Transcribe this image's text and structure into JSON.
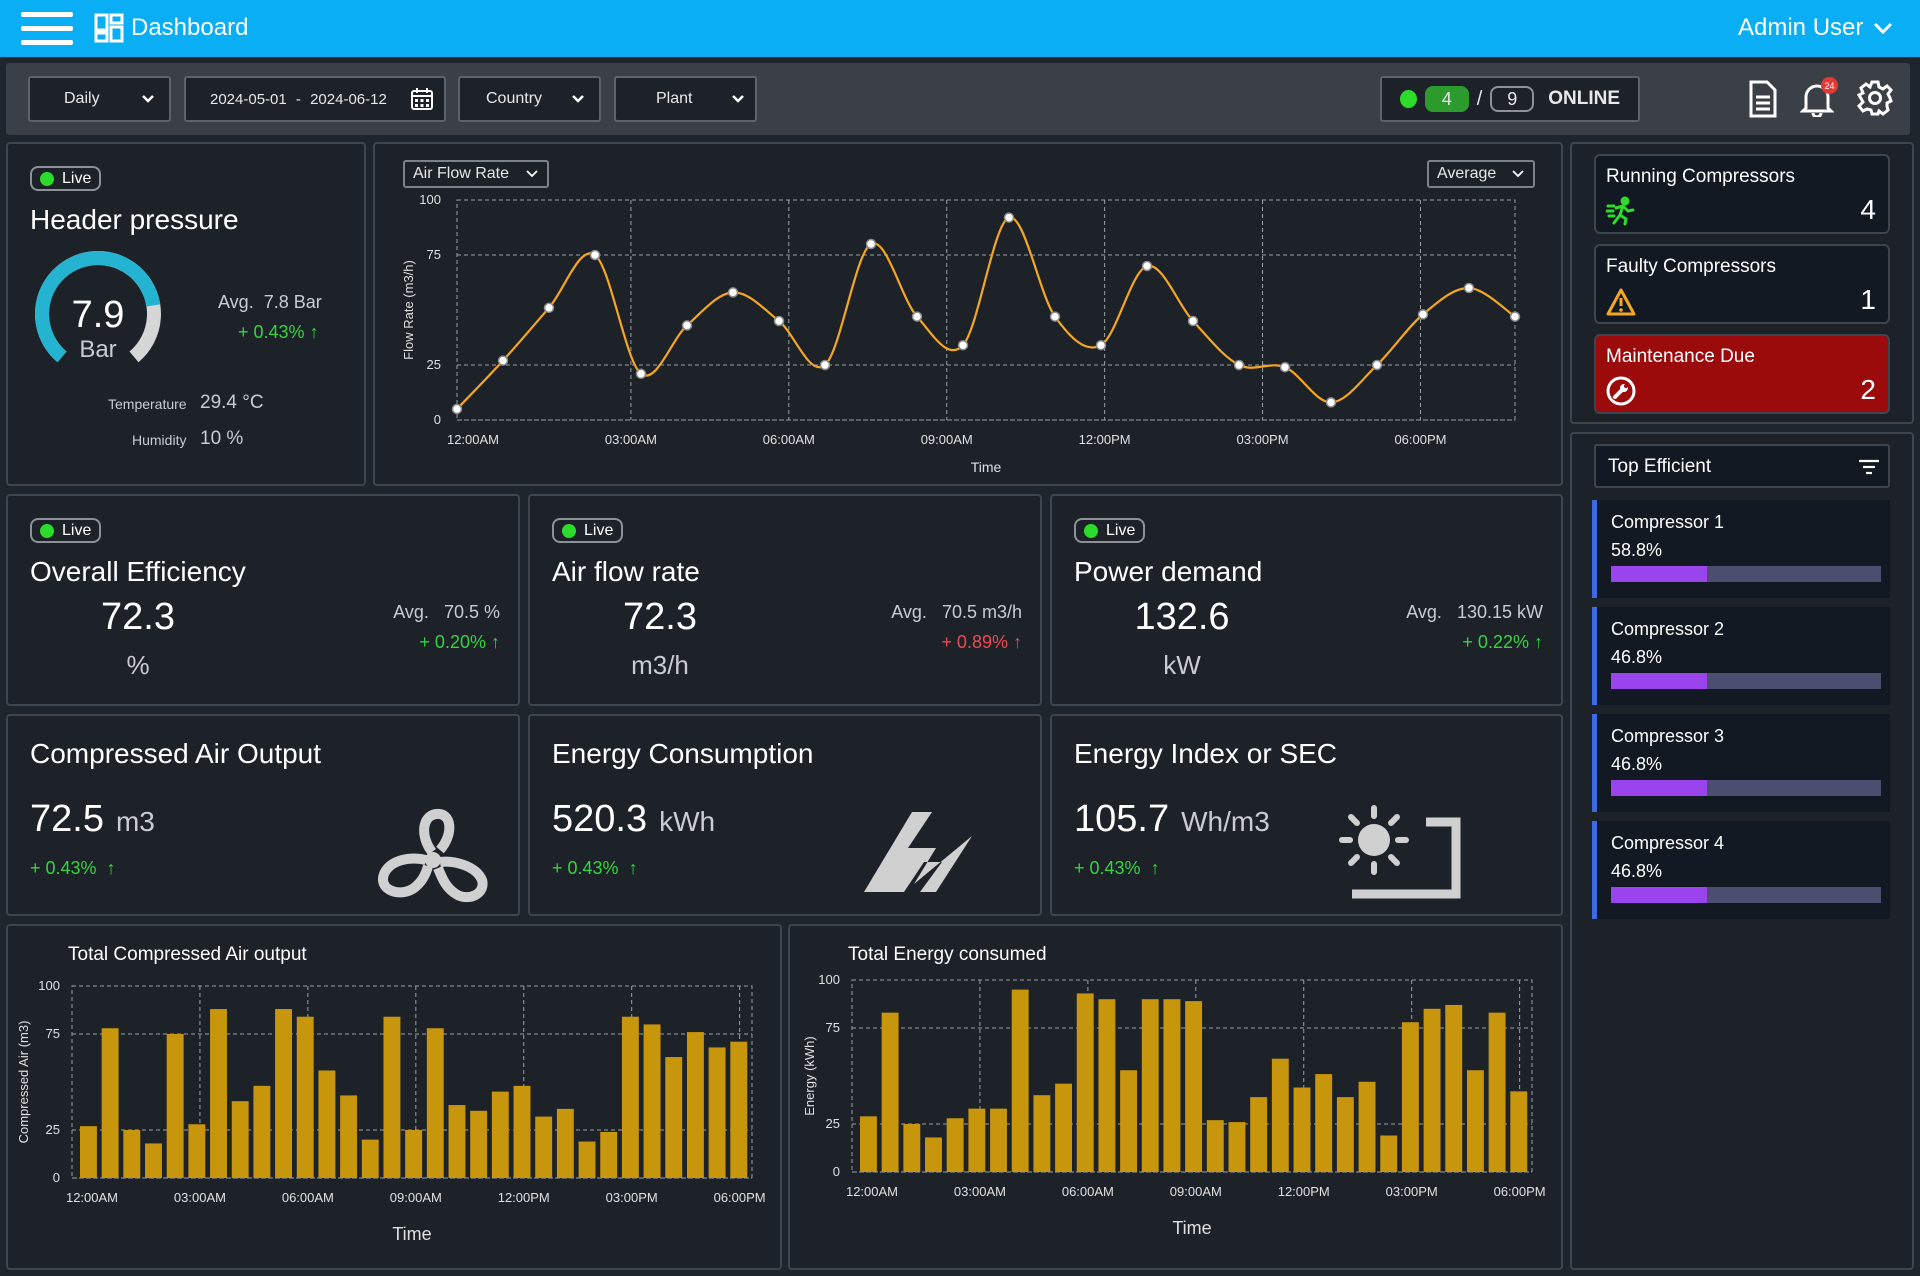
{
  "header": {
    "title": "Dashboard",
    "user": "Admin User"
  },
  "filters": {
    "period": "Daily",
    "date_from": "2024-05-01",
    "date_sep": "-",
    "date_to": "2024-06-12",
    "country": "Country",
    "plant": "Plant",
    "online_count": "4",
    "total_count": "9",
    "slash": "/",
    "online_label": "ONLINE",
    "notification_count": "24"
  },
  "header_pressure": {
    "live": "Live",
    "title": "Header pressure",
    "value": "7.9",
    "unit": "Bar",
    "gauge_fraction": 0.79,
    "avg_label": "Avg.",
    "avg_value": "7.8 Bar",
    "change": "+ 0.43%",
    "temp_label": "Temperature",
    "temp_value": "29.4",
    "temp_unit": "°C",
    "humidity_label": "Humidity",
    "humidity_value": "10",
    "humidity_unit": "%"
  },
  "flow_chart_controls": {
    "metric": "Air Flow Rate",
    "aggregate": "Average"
  },
  "kpis": [
    {
      "live": "Live",
      "title": "Overall Efficiency",
      "value": "72.3",
      "unit": "%",
      "avg_label": "Avg.",
      "avg_value": "70.5 %",
      "change": "+ 0.20%",
      "trend": "up",
      "change_color": "#35d43f"
    },
    {
      "live": "Live",
      "title": "Air flow rate",
      "value": "72.3",
      "unit": "m3/h",
      "avg_label": "Avg.",
      "avg_value": "70.5 m3/h",
      "change": "+ 0.89%",
      "trend": "up",
      "change_color": "#f2484f"
    },
    {
      "live": "Live",
      "title": "Power demand",
      "value": "132.6",
      "unit": "kW",
      "avg_label": "Avg.",
      "avg_value": "130.15 kW",
      "change": "+ 0.22%",
      "trend": "up",
      "change_color": "#35d43f"
    }
  ],
  "totals": [
    {
      "title": "Compressed Air Output",
      "value": "72.5",
      "unit": "m3",
      "change": "+ 0.43%",
      "icon": "fan-icon"
    },
    {
      "title": "Energy Consumption",
      "value": "520.3",
      "unit": "kWh",
      "change": "+ 0.43%",
      "icon": "energy-bolt-icon"
    },
    {
      "title": "Energy Index or SEC",
      "value": "105.7",
      "unit": "Wh/m3",
      "change": "+ 0.43%",
      "icon": "sun-index-icon"
    }
  ],
  "status": {
    "running_label": "Running Compressors",
    "running_value": "4",
    "faulty_label": "Faulty Compressors",
    "faulty_value": "1",
    "maintenance_label": "Maintenance Due",
    "maintenance_value": "2",
    "maintenance_color": "#9b0b0b"
  },
  "top_efficient": {
    "title": "Top Efficient",
    "items": [
      {
        "name": "Compressor 1",
        "percent": "58.8%",
        "fraction": 0.355
      },
      {
        "name": "Compressor 2",
        "percent": "46.8%",
        "fraction": 0.355
      },
      {
        "name": "Compressor 3",
        "percent": "46.8%",
        "fraction": 0.355
      },
      {
        "name": "Compressor 4",
        "percent": "46.8%",
        "fraction": 0.355
      }
    ]
  },
  "colors": {
    "accent": "#0aaef5",
    "line": "#f5a623",
    "bar": "#c8960c",
    "progress": "#9a44ee",
    "live": "#2ddb2d"
  },
  "chart_data": [
    {
      "type": "line",
      "title": "",
      "xlabel": "Time",
      "ylabel": "Flow Rate (m3/h)",
      "ylim": [
        0,
        100
      ],
      "yticks": [
        0,
        25,
        75,
        100
      ],
      "x_tick_labels": [
        "12:00AM",
        "03:00AM",
        "06:00AM",
        "09:00AM",
        "12:00PM",
        "03:00PM",
        "06:00PM"
      ],
      "grid": true,
      "values": [
        5,
        27,
        51,
        75,
        21,
        43,
        58,
        45,
        25,
        80,
        47,
        34,
        92,
        47,
        34,
        70,
        45,
        25,
        24,
        8,
        25,
        48,
        60,
        47
      ]
    },
    {
      "type": "bar",
      "title": "Total Compressed Air output",
      "xlabel": "Time",
      "ylabel": "Compressed Air (m3)",
      "ylim": [
        0,
        100
      ],
      "yticks": [
        0,
        25,
        75,
        100
      ],
      "x_tick_labels": [
        "12:00AM",
        "03:00AM",
        "06:00AM",
        "09:00AM",
        "12:00PM",
        "03:00PM",
        "06:00PM"
      ],
      "grid": true,
      "values": [
        27,
        78,
        25,
        18,
        75,
        28,
        88,
        40,
        48,
        88,
        84,
        56,
        43,
        20,
        84,
        25,
        78,
        38,
        35,
        45,
        48,
        32,
        36,
        19,
        24,
        84,
        80,
        63,
        76,
        68,
        71
      ]
    },
    {
      "type": "bar",
      "title": "Total Energy consumed",
      "xlabel": "Time",
      "ylabel": "Energy (kWh)",
      "ylim": [
        0,
        100
      ],
      "yticks": [
        0,
        25,
        75,
        100
      ],
      "x_tick_labels": [
        "12:00AM",
        "03:00AM",
        "06:00AM",
        "09:00AM",
        "12:00PM",
        "03:00PM",
        "06:00PM"
      ],
      "grid": true,
      "values": [
        29,
        83,
        25,
        18,
        28,
        33,
        33,
        95,
        40,
        46,
        93,
        90,
        53,
        90,
        90,
        89,
        27,
        26,
        39,
        59,
        44,
        51,
        39,
        47,
        19,
        78,
        85,
        87,
        53,
        83,
        42
      ]
    }
  ]
}
